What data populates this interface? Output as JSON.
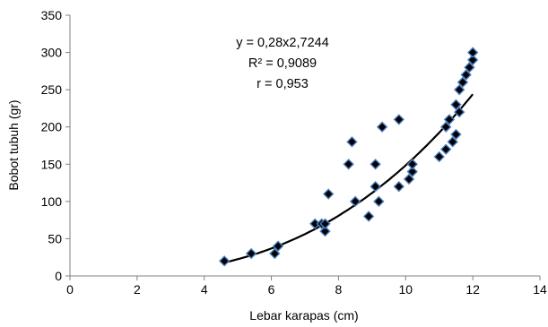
{
  "chart_data": {
    "type": "scatter",
    "title": "",
    "xlabel": "Lebar karapas (cm)",
    "ylabel": "Bobot tubuh (gr)",
    "xlim": [
      0,
      14
    ],
    "ylim": [
      0,
      350
    ],
    "xticks": [
      0,
      2,
      4,
      6,
      8,
      10,
      12,
      14
    ],
    "yticks": [
      0,
      50,
      100,
      150,
      200,
      250,
      300,
      350
    ],
    "grid": false,
    "legend": "none",
    "annotations": [
      "y = 0,28x2,7244",
      "R² = 0,9089",
      "r = 0,953"
    ],
    "series": [
      {
        "marker": "diamond",
        "color": "#000000",
        "edge_color": "#4a7ebf",
        "points": [
          [
            4.6,
            20
          ],
          [
            5.4,
            30
          ],
          [
            6.1,
            30
          ],
          [
            6.2,
            40
          ],
          [
            7.3,
            70
          ],
          [
            7.5,
            70
          ],
          [
            7.6,
            60
          ],
          [
            7.6,
            70
          ],
          [
            7.7,
            110
          ],
          [
            8.3,
            150
          ],
          [
            8.4,
            180
          ],
          [
            8.5,
            100
          ],
          [
            8.9,
            80
          ],
          [
            9.1,
            150
          ],
          [
            9.1,
            120
          ],
          [
            9.2,
            100
          ],
          [
            9.3,
            200
          ],
          [
            9.8,
            210
          ],
          [
            9.8,
            120
          ],
          [
            10.1,
            130
          ],
          [
            10.2,
            140
          ],
          [
            10.2,
            150
          ],
          [
            11.0,
            160
          ],
          [
            11.2,
            170
          ],
          [
            11.2,
            200
          ],
          [
            11.3,
            210
          ],
          [
            11.4,
            180
          ],
          [
            11.5,
            190
          ],
          [
            11.5,
            230
          ],
          [
            11.6,
            220
          ],
          [
            11.6,
            250
          ],
          [
            11.7,
            260
          ],
          [
            11.8,
            270
          ],
          [
            11.9,
            280
          ],
          [
            12.0,
            290
          ],
          [
            12.0,
            300
          ]
        ]
      }
    ],
    "trendline": {
      "type": "power",
      "a": 0.28,
      "b": 2.7244,
      "x_range": [
        4.6,
        12.0
      ],
      "color": "#000000"
    }
  }
}
